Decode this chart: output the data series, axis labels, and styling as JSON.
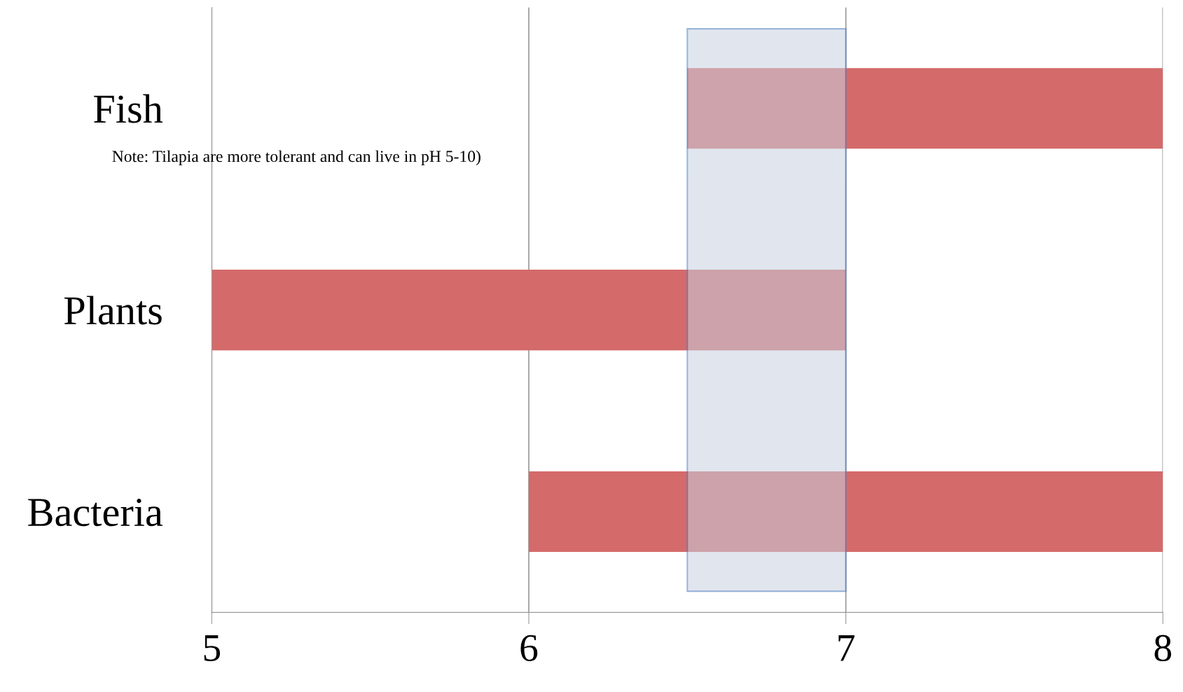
{
  "chart_data": {
    "type": "bar",
    "orientation": "horizontal",
    "categories": [
      "Fish",
      "Plants",
      "Bacteria"
    ],
    "base": [
      6.5,
      5,
      6
    ],
    "values": [
      1.5,
      2,
      2
    ],
    "color": "#d46a6a",
    "xlim": [
      5,
      8
    ],
    "xticks": [
      5,
      6,
      7,
      8
    ],
    "grid": "x",
    "bands": [
      {
        "axis": "x",
        "from": 6.5,
        "to": 7,
        "color": "#c9d1e0"
      }
    ],
    "annotations": [
      "Note: Tilapia are more tolerant and can live in pH 5-10)"
    ]
  }
}
